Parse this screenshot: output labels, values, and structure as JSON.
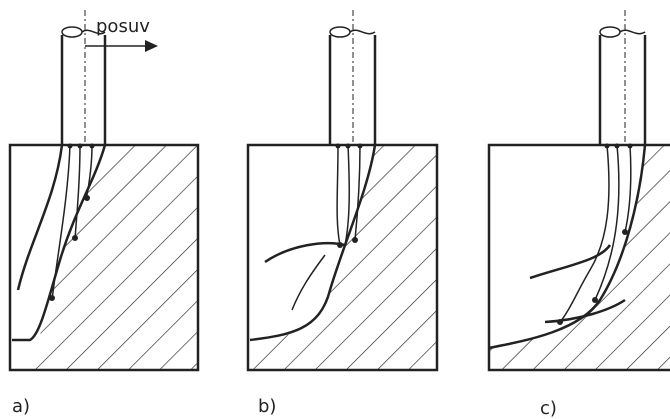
{
  "labels": {
    "feed": "posuv",
    "a": "a)",
    "b": "b)",
    "c": "c)"
  }
}
